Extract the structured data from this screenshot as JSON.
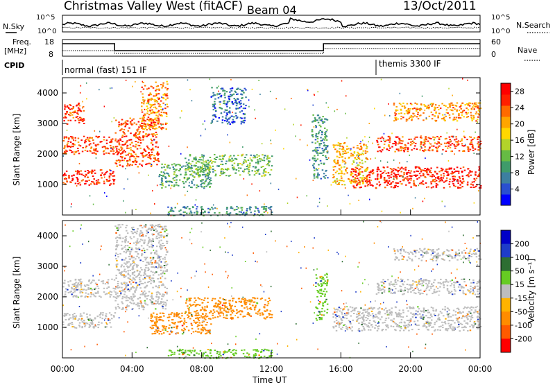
{
  "header": {
    "station": "Christmas Valley West (fitACF)",
    "beam": "Beam 04",
    "date": "13/Oct/2011"
  },
  "summary": {
    "nsky_label": "N.Sky",
    "nsearch_label": "N.Search",
    "noise_ticks_left": [
      "10^5",
      "10^0"
    ],
    "noise_ticks_right": [
      "10^5",
      "10^0"
    ],
    "freq_label": "Freq.",
    "freq_unit": "[MHz]",
    "freq_ticks": [
      "18",
      "8"
    ],
    "nave_label": "Nave",
    "nave_ticks": [
      "60",
      "0"
    ],
    "cpid_label": "CPID",
    "cpid_modes": [
      {
        "label": "normal (fast) 151 IF",
        "start_hour": 0
      },
      {
        "label": "themis 3300 IF",
        "start_hour": 18
      }
    ]
  },
  "colors": {
    "power": [
      "#0000ff",
      "#2a4fd0",
      "#3d7fa0",
      "#3f9b6a",
      "#66bb44",
      "#b2d32a",
      "#ffd700",
      "#ffa500",
      "#ff6a00",
      "#ff2000",
      "#ff0000"
    ],
    "velocity": [
      "#0000c8",
      "#1e3cc8",
      "#2d6e32",
      "#4aa040",
      "#66cc22",
      "#bdbdbd",
      "#ffb300",
      "#ff8c00",
      "#ff5a00",
      "#ff0000"
    ],
    "ground_scatter": "#bdbdbd"
  },
  "chart_data": [
    {
      "type": "heatmap",
      "panel": "power",
      "xlabel": "",
      "ylabel": "Slant Range [km]",
      "x_range_hours": [
        0,
        24
      ],
      "ylim": [
        0,
        4500
      ],
      "y_ticks": [
        1000,
        2000,
        3000,
        4000
      ],
      "colorbar": {
        "label": "Power [dB]",
        "ticks": [
          4,
          8,
          12,
          16,
          20,
          24,
          28
        ],
        "range": [
          0,
          30
        ]
      },
      "regions": [
        {
          "t_start": 0.0,
          "t_end": 3.0,
          "r_min": 1000,
          "r_max": 1500,
          "value": 28
        },
        {
          "t_start": 0.0,
          "t_end": 3.0,
          "r_min": 2000,
          "r_max": 2600,
          "value": 26
        },
        {
          "t_start": 0.0,
          "t_end": 1.2,
          "r_min": 3000,
          "r_max": 3700,
          "value": 26
        },
        {
          "t_start": 3.0,
          "t_end": 5.5,
          "r_min": 1600,
          "r_max": 3200,
          "value": 26
        },
        {
          "t_start": 4.5,
          "t_end": 6.0,
          "r_min": 2800,
          "r_max": 4400,
          "value": 22
        },
        {
          "t_start": 5.5,
          "t_end": 8.5,
          "r_min": 900,
          "r_max": 1700,
          "value": 10
        },
        {
          "t_start": 7.0,
          "t_end": 12.0,
          "r_min": 1300,
          "r_max": 2000,
          "value": 12
        },
        {
          "t_start": 8.5,
          "t_end": 10.5,
          "r_min": 3000,
          "r_max": 4200,
          "value": 5
        },
        {
          "t_start": 6.0,
          "t_end": 12.0,
          "r_min": 0,
          "r_max": 300,
          "value": 8
        },
        {
          "t_start": 14.3,
          "t_end": 15.2,
          "r_min": 1200,
          "r_max": 3300,
          "value": 8
        },
        {
          "t_start": 15.5,
          "t_end": 17.5,
          "r_min": 1000,
          "r_max": 2400,
          "value": 20
        },
        {
          "t_start": 16.5,
          "t_end": 24.0,
          "r_min": 900,
          "r_max": 1600,
          "value": 28
        },
        {
          "t_start": 18.0,
          "t_end": 24.0,
          "r_min": 2100,
          "r_max": 2600,
          "value": 26
        },
        {
          "t_start": 19.0,
          "t_end": 24.0,
          "r_min": 3100,
          "r_max": 3700,
          "value": 22
        }
      ]
    },
    {
      "type": "heatmap",
      "panel": "velocity",
      "xlabel": "Time UT",
      "ylabel": "Slant Range [km]",
      "x_range_hours": [
        0,
        24
      ],
      "x_ticks": [
        "00:00",
        "04:00",
        "08:00",
        "12:00",
        "16:00",
        "20:00",
        "00:00"
      ],
      "ylim": [
        0,
        4500
      ],
      "y_ticks": [
        1000,
        2000,
        3000,
        4000
      ],
      "colorbar": {
        "label": "Velocity [m s⁻¹]",
        "ticks": [
          200,
          100,
          50,
          15,
          -15,
          -50,
          -100,
          -200
        ]
      },
      "regions": [
        {
          "t_start": 0.0,
          "t_end": 3.0,
          "r_min": 1000,
          "r_max": 1500,
          "value": 0
        },
        {
          "t_start": 0.0,
          "t_end": 3.0,
          "r_min": 2000,
          "r_max": 2600,
          "value": 0
        },
        {
          "t_start": 3.0,
          "t_end": 6.0,
          "r_min": 1600,
          "r_max": 4400,
          "value": 0
        },
        {
          "t_start": 5.0,
          "t_end": 8.5,
          "r_min": 800,
          "r_max": 1500,
          "value": -80
        },
        {
          "t_start": 7.0,
          "t_end": 12.0,
          "r_min": 1300,
          "r_max": 2000,
          "value": -80
        },
        {
          "t_start": 6.0,
          "t_end": 12.0,
          "r_min": 0,
          "r_max": 300,
          "value": 30
        },
        {
          "t_start": 14.5,
          "t_end": 15.2,
          "r_min": 1200,
          "r_max": 2800,
          "value": 30
        },
        {
          "t_start": 15.5,
          "t_end": 24.0,
          "r_min": 900,
          "r_max": 1700,
          "value": 0
        },
        {
          "t_start": 18.0,
          "t_end": 24.0,
          "r_min": 2100,
          "r_max": 2600,
          "value": 0
        },
        {
          "t_start": 19.0,
          "t_end": 24.0,
          "r_min": 3200,
          "r_max": 3600,
          "value": 0
        }
      ]
    }
  ]
}
